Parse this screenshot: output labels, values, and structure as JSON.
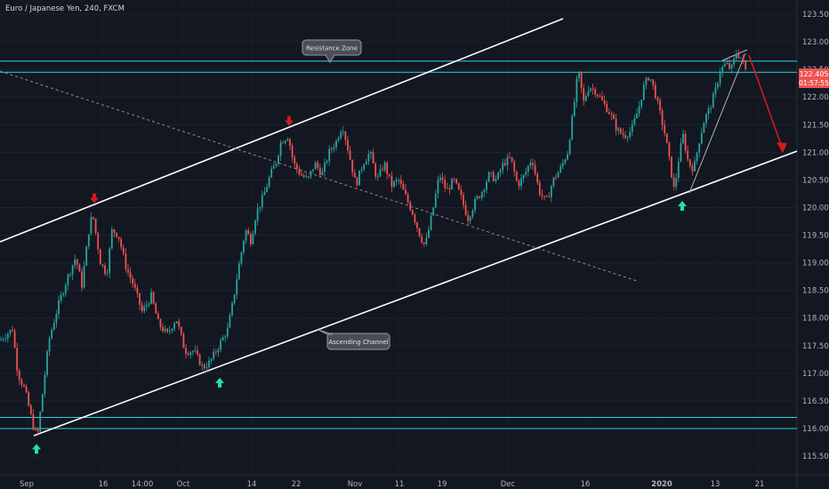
{
  "chart_title": "Euro / Japanese Yen, 240, FXCM",
  "annotations": {
    "resistance_zone": "Resistance Zone",
    "ascending_channel": "Ascending Channel"
  },
  "price_tags": {
    "current_price": "122.405",
    "countdown": "01:57:55"
  },
  "colors": {
    "background": "#131722",
    "up": "#26a69a",
    "down": "#ef5350",
    "zone": "#2ad4da",
    "channel": "#ffffff",
    "trendline": "#8a8e99",
    "arrow_up": "#20e5a0",
    "arrow_down": "#d01c1c",
    "price_tag": "#ef5350"
  },
  "chart_data": {
    "type": "candlestick",
    "title": "Euro / Japanese Yen, 240, FXCM",
    "x_tick_labels": [
      "Sep",
      "16",
      "14:00",
      "Oct",
      "14",
      "22",
      "Nov",
      "11",
      "19",
      "Dec",
      "16",
      "2020",
      "13",
      "21"
    ],
    "y_tick_labels": [
      "115.500",
      "116.000",
      "116.500",
      "117.000",
      "117.500",
      "118.000",
      "118.500",
      "119.000",
      "119.500",
      "120.000",
      "120.500",
      "121.000",
      "121.500",
      "122.000",
      "122.500",
      "123.000",
      "123.500"
    ],
    "y_range": [
      115.3,
      123.8
    ],
    "grid": true,
    "legend": "none",
    "series_path": [
      [
        0,
        117.6
      ],
      [
        14,
        117.8
      ],
      [
        20,
        117.0
      ],
      [
        28,
        116.7
      ],
      [
        38,
        116.0
      ],
      [
        42,
        115.85
      ],
      [
        55,
        117.6
      ],
      [
        65,
        118.2
      ],
      [
        75,
        118.7
      ],
      [
        85,
        119.1
      ],
      [
        92,
        118.6
      ],
      [
        100,
        119.6
      ],
      [
        104,
        119.9
      ],
      [
        108,
        119.5
      ],
      [
        113,
        119.0
      ],
      [
        120,
        118.8
      ],
      [
        126,
        119.6
      ],
      [
        133,
        119.5
      ],
      [
        142,
        118.9
      ],
      [
        150,
        118.6
      ],
      [
        160,
        118.1
      ],
      [
        170,
        118.4
      ],
      [
        178,
        117.9
      ],
      [
        188,
        117.7
      ],
      [
        198,
        118.0
      ],
      [
        208,
        117.4
      ],
      [
        218,
        117.4
      ],
      [
        228,
        117.1
      ],
      [
        236,
        117.2
      ],
      [
        246,
        117.5
      ],
      [
        256,
        117.8
      ],
      [
        262,
        118.3
      ],
      [
        268,
        118.9
      ],
      [
        276,
        119.6
      ],
      [
        282,
        119.4
      ],
      [
        288,
        119.9
      ],
      [
        296,
        120.2
      ],
      [
        304,
        120.6
      ],
      [
        310,
        120.8
      ],
      [
        316,
        121.2
      ],
      [
        324,
        121.3
      ],
      [
        330,
        120.8
      ],
      [
        338,
        120.6
      ],
      [
        346,
        120.5
      ],
      [
        354,
        120.8
      ],
      [
        362,
        120.6
      ],
      [
        370,
        121.0
      ],
      [
        378,
        121.2
      ],
      [
        385,
        121.5
      ],
      [
        392,
        121.0
      ],
      [
        400,
        120.4
      ],
      [
        408,
        120.8
      ],
      [
        416,
        121.0
      ],
      [
        424,
        120.5
      ],
      [
        432,
        120.8
      ],
      [
        440,
        120.4
      ],
      [
        448,
        120.5
      ],
      [
        456,
        120.2
      ],
      [
        464,
        119.9
      ],
      [
        472,
        119.5
      ],
      [
        478,
        119.3
      ],
      [
        486,
        119.9
      ],
      [
        494,
        120.6
      ],
      [
        502,
        120.3
      ],
      [
        510,
        120.5
      ],
      [
        518,
        120.2
      ],
      [
        526,
        119.8
      ],
      [
        534,
        120.1
      ],
      [
        542,
        120.3
      ],
      [
        550,
        120.6
      ],
      [
        558,
        120.5
      ],
      [
        566,
        120.8
      ],
      [
        574,
        120.9
      ],
      [
        582,
        120.4
      ],
      [
        590,
        120.6
      ],
      [
        598,
        120.9
      ],
      [
        606,
        120.3
      ],
      [
        614,
        120.1
      ],
      [
        622,
        120.5
      ],
      [
        630,
        120.7
      ],
      [
        638,
        121.0
      ],
      [
        645,
        121.8
      ],
      [
        650,
        122.5
      ],
      [
        656,
        121.9
      ],
      [
        662,
        122.2
      ],
      [
        670,
        122.1
      ],
      [
        678,
        121.9
      ],
      [
        686,
        121.7
      ],
      [
        694,
        121.4
      ],
      [
        702,
        121.3
      ],
      [
        710,
        121.4
      ],
      [
        718,
        121.8
      ],
      [
        724,
        122.2
      ],
      [
        730,
        122.4
      ],
      [
        736,
        122.1
      ],
      [
        742,
        121.7
      ],
      [
        748,
        121.3
      ],
      [
        754,
        120.7
      ],
      [
        758,
        120.3
      ],
      [
        764,
        121.0
      ],
      [
        768,
        121.3
      ],
      [
        774,
        120.8
      ],
      [
        780,
        120.7
      ],
      [
        786,
        121.2
      ],
      [
        792,
        121.6
      ],
      [
        798,
        121.8
      ],
      [
        804,
        122.1
      ],
      [
        810,
        122.5
      ],
      [
        816,
        122.6
      ],
      [
        822,
        122.5
      ],
      [
        828,
        122.8
      ],
      [
        834,
        122.7
      ],
      [
        840,
        122.4
      ]
    ],
    "resistance_zone": [
      122.45,
      122.65
    ],
    "support_zone": [
      116.0,
      116.2
    ],
    "swing_arrows": [
      {
        "dir": "up",
        "x": 41,
        "price": 115.8
      },
      {
        "dir": "down",
        "x": 106,
        "price": 120.0
      },
      {
        "dir": "up",
        "x": 247,
        "price": 117.0
      },
      {
        "dir": "down",
        "x": 325,
        "price": 121.4
      },
      {
        "dir": "up",
        "x": 767,
        "price": 120.2
      }
    ]
  }
}
